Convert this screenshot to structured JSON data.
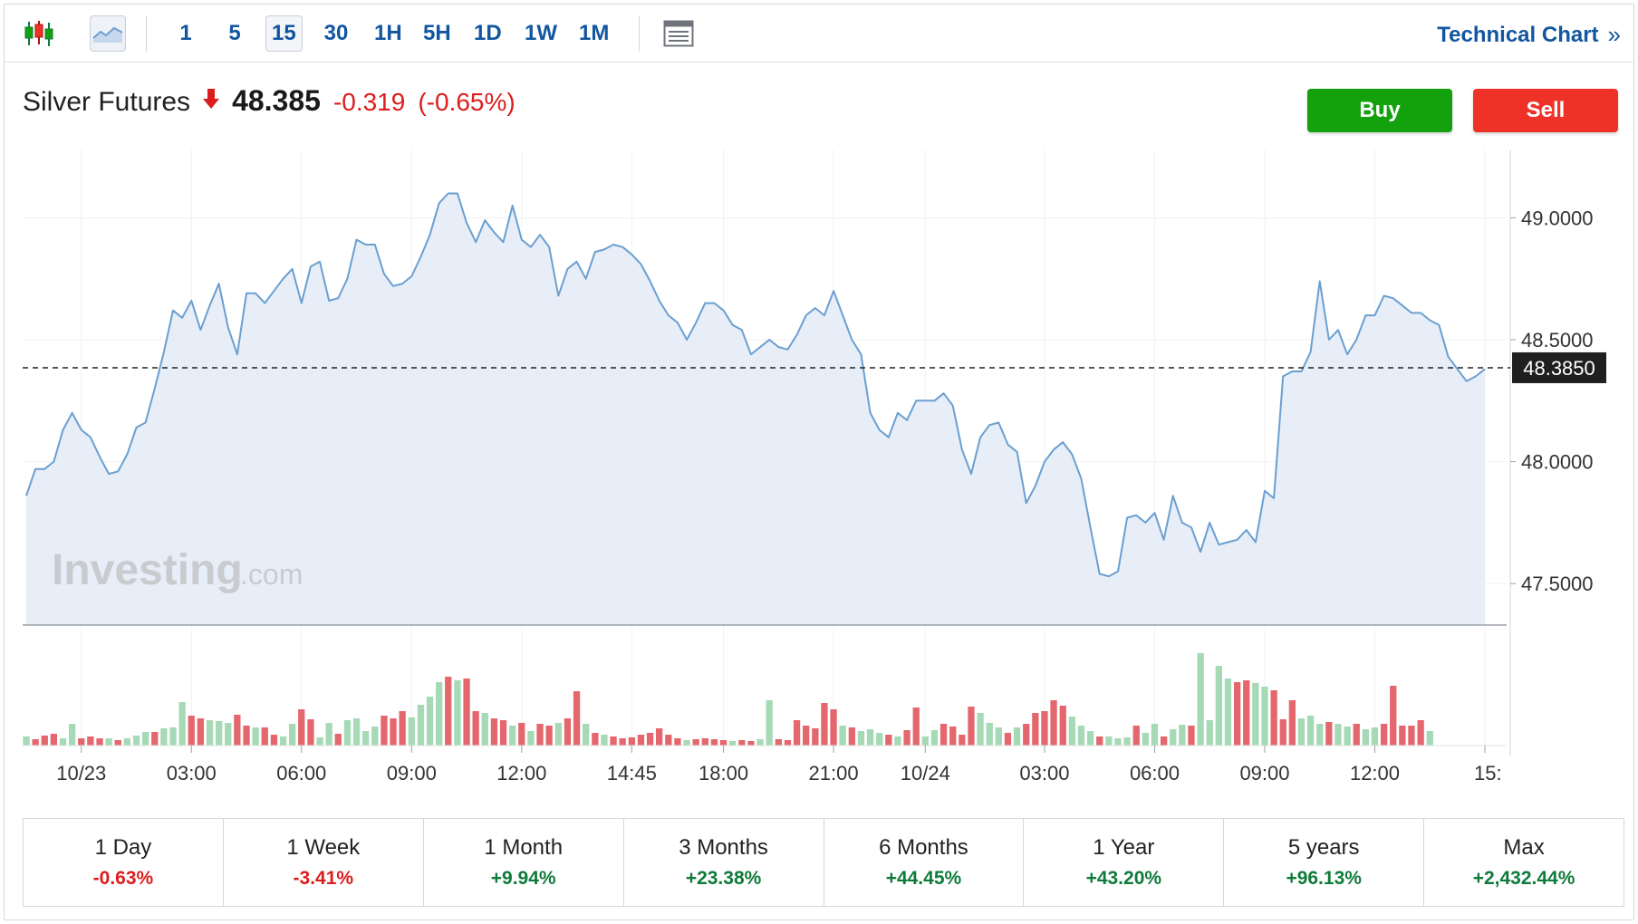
{
  "toolbar": {
    "intervals": [
      {
        "label": "1"
      },
      {
        "label": "5"
      },
      {
        "label": "15",
        "active": true
      },
      {
        "label": "30"
      },
      {
        "label": "1H"
      },
      {
        "label": "5H"
      },
      {
        "label": "1D"
      },
      {
        "label": "1W"
      },
      {
        "label": "1M"
      }
    ],
    "technical_chart_label": "Technical Chart"
  },
  "instrument": {
    "name": "Silver Futures",
    "price": "48.385",
    "change": "-0.319",
    "change_pct": "(-0.65%)",
    "direction": "down"
  },
  "actions": {
    "buy_label": "Buy",
    "sell_label": "Sell"
  },
  "watermark": {
    "brand": "Investing",
    "suffix": ".com"
  },
  "colors": {
    "line": "#6b9fd0",
    "area_fill": "#e7eef8",
    "volume_up": "#a6d9b6",
    "volume_down": "#e4676e",
    "negative": "#dc1d1d",
    "positive": "#0f7b3a",
    "buy": "#13a10e",
    "sell": "#ee3228",
    "current_price_tag": "#1f1f1f"
  },
  "chart_data": {
    "type": "area",
    "interval_minutes": 15,
    "ylim": [
      47.33,
      49.28
    ],
    "y_ticks": [
      49.0,
      48.5,
      48.0,
      47.5
    ],
    "y_tick_labels": [
      "49.0000",
      "48.5000",
      "48.0000",
      "47.5000"
    ],
    "current_price": 48.385,
    "current_price_label": "48.3850",
    "x_tick_labels": [
      "10/23",
      "03:00",
      "06:00",
      "09:00",
      "12:00",
      "14:45",
      "18:00",
      "21:00",
      "10/24",
      "03:00",
      "06:00",
      "09:00",
      "12:00",
      "15:"
    ],
    "x_tick_index": [
      6,
      18,
      30,
      42,
      54,
      66,
      76,
      88,
      98,
      111,
      123,
      135,
      147,
      159
    ],
    "grid": true,
    "series": [
      {
        "values": [
          47.86,
          47.97,
          47.97,
          48.0,
          48.13,
          48.2,
          48.13,
          48.1,
          48.02,
          47.95,
          47.96,
          48.03,
          48.14,
          48.16,
          48.3,
          48.45,
          48.62,
          48.59,
          48.66,
          48.54,
          48.64,
          48.73,
          48.55,
          48.44,
          48.69,
          48.69,
          48.65,
          48.7,
          48.75,
          48.79,
          48.65,
          48.8,
          48.82,
          48.66,
          48.67,
          48.75,
          48.91,
          48.89,
          48.89,
          48.77,
          48.72,
          48.73,
          48.76,
          48.84,
          48.93,
          49.06,
          49.1,
          49.1,
          48.98,
          48.9,
          48.99,
          48.94,
          48.9,
          49.05,
          48.91,
          48.88,
          48.93,
          48.88,
          48.68,
          48.79,
          48.82,
          48.75,
          48.86,
          48.87,
          48.89,
          48.88,
          48.85,
          48.81,
          48.74,
          48.66,
          48.6,
          48.57,
          48.5,
          48.57,
          48.65,
          48.65,
          48.62,
          48.56,
          48.54,
          48.44,
          48.47,
          48.5,
          48.47,
          48.46,
          48.52,
          48.6,
          48.63,
          48.6,
          48.7,
          48.6,
          48.5,
          48.44,
          48.2,
          48.13,
          48.1,
          48.2,
          48.17,
          48.25,
          48.25,
          48.25,
          48.28,
          48.23,
          48.05,
          47.95,
          48.1,
          48.15,
          48.16,
          48.07,
          48.04,
          47.83,
          47.9,
          48.0,
          48.05,
          48.08,
          48.03,
          47.93,
          47.73,
          47.54,
          47.53,
          47.55,
          47.77,
          47.78,
          47.75,
          47.79,
          47.68,
          47.86,
          47.75,
          47.73,
          47.63,
          47.75,
          47.66,
          47.67,
          47.68,
          47.72,
          47.67,
          47.88,
          47.85,
          48.35,
          48.37,
          48.37,
          48.45,
          48.74,
          48.5,
          48.54,
          48.44,
          48.5,
          48.6,
          48.6,
          48.68,
          48.67,
          48.64,
          48.61,
          48.61,
          48.58,
          48.56,
          48.43,
          48.38,
          48.33,
          48.35,
          48.38
        ]
      }
    ],
    "volume": [
      {
        "h": 10,
        "d": 0
      },
      {
        "h": 7,
        "d": 1
      },
      {
        "h": 11,
        "d": 1
      },
      {
        "h": 13,
        "d": 1
      },
      {
        "h": 8,
        "d": 0
      },
      {
        "h": 24,
        "d": 0
      },
      {
        "h": 8,
        "d": 1
      },
      {
        "h": 10,
        "d": 1
      },
      {
        "h": 8,
        "d": 1
      },
      {
        "h": 8,
        "d": 0
      },
      {
        "h": 6,
        "d": 1
      },
      {
        "h": 8,
        "d": 0
      },
      {
        "h": 11,
        "d": 0
      },
      {
        "h": 15,
        "d": 0
      },
      {
        "h": 15,
        "d": 1
      },
      {
        "h": 19,
        "d": 0
      },
      {
        "h": 20,
        "d": 0
      },
      {
        "h": 48,
        "d": 0
      },
      {
        "h": 33,
        "d": 1
      },
      {
        "h": 30,
        "d": 1
      },
      {
        "h": 28,
        "d": 0
      },
      {
        "h": 27,
        "d": 0
      },
      {
        "h": 25,
        "d": 0
      },
      {
        "h": 34,
        "d": 1
      },
      {
        "h": 22,
        "d": 1
      },
      {
        "h": 20,
        "d": 0
      },
      {
        "h": 20,
        "d": 1
      },
      {
        "h": 12,
        "d": 1
      },
      {
        "h": 10,
        "d": 0
      },
      {
        "h": 24,
        "d": 0
      },
      {
        "h": 40,
        "d": 1
      },
      {
        "h": 29,
        "d": 1
      },
      {
        "h": 9,
        "d": 0
      },
      {
        "h": 25,
        "d": 0
      },
      {
        "h": 13,
        "d": 1
      },
      {
        "h": 28,
        "d": 0
      },
      {
        "h": 30,
        "d": 0
      },
      {
        "h": 16,
        "d": 0
      },
      {
        "h": 21,
        "d": 0
      },
      {
        "h": 33,
        "d": 1
      },
      {
        "h": 30,
        "d": 1
      },
      {
        "h": 38,
        "d": 1
      },
      {
        "h": 31,
        "d": 0
      },
      {
        "h": 45,
        "d": 0
      },
      {
        "h": 54,
        "d": 0
      },
      {
        "h": 70,
        "d": 0
      },
      {
        "h": 76,
        "d": 1
      },
      {
        "h": 72,
        "d": 0
      },
      {
        "h": 74,
        "d": 1
      },
      {
        "h": 38,
        "d": 1
      },
      {
        "h": 36,
        "d": 0
      },
      {
        "h": 30,
        "d": 1
      },
      {
        "h": 28,
        "d": 1
      },
      {
        "h": 22,
        "d": 0
      },
      {
        "h": 25,
        "d": 1
      },
      {
        "h": 16,
        "d": 0
      },
      {
        "h": 24,
        "d": 1
      },
      {
        "h": 22,
        "d": 1
      },
      {
        "h": 25,
        "d": 0
      },
      {
        "h": 30,
        "d": 1
      },
      {
        "h": 60,
        "d": 1
      },
      {
        "h": 24,
        "d": 0
      },
      {
        "h": 14,
        "d": 1
      },
      {
        "h": 12,
        "d": 0
      },
      {
        "h": 10,
        "d": 1
      },
      {
        "h": 8,
        "d": 1
      },
      {
        "h": 9,
        "d": 1
      },
      {
        "h": 12,
        "d": 1
      },
      {
        "h": 14,
        "d": 1
      },
      {
        "h": 19,
        "d": 1
      },
      {
        "h": 12,
        "d": 1
      },
      {
        "h": 8,
        "d": 1
      },
      {
        "h": 6,
        "d": 0
      },
      {
        "h": 7,
        "d": 1
      },
      {
        "h": 8,
        "d": 1
      },
      {
        "h": 7,
        "d": 1
      },
      {
        "h": 6,
        "d": 1
      },
      {
        "h": 5,
        "d": 0
      },
      {
        "h": 6,
        "d": 1
      },
      {
        "h": 5,
        "d": 1
      },
      {
        "h": 7,
        "d": 0
      },
      {
        "h": 50,
        "d": 0
      },
      {
        "h": 7,
        "d": 1
      },
      {
        "h": 6,
        "d": 1
      },
      {
        "h": 28,
        "d": 1
      },
      {
        "h": 22,
        "d": 1
      },
      {
        "h": 19,
        "d": 1
      },
      {
        "h": 47,
        "d": 1
      },
      {
        "h": 40,
        "d": 1
      },
      {
        "h": 22,
        "d": 0
      },
      {
        "h": 20,
        "d": 1
      },
      {
        "h": 16,
        "d": 0
      },
      {
        "h": 18,
        "d": 0
      },
      {
        "h": 14,
        "d": 0
      },
      {
        "h": 12,
        "d": 1
      },
      {
        "h": 10,
        "d": 0
      },
      {
        "h": 17,
        "d": 1
      },
      {
        "h": 42,
        "d": 1
      },
      {
        "h": 10,
        "d": 0
      },
      {
        "h": 17,
        "d": 0
      },
      {
        "h": 24,
        "d": 1
      },
      {
        "h": 21,
        "d": 1
      },
      {
        "h": 12,
        "d": 1
      },
      {
        "h": 43,
        "d": 1
      },
      {
        "h": 36,
        "d": 0
      },
      {
        "h": 25,
        "d": 0
      },
      {
        "h": 20,
        "d": 0
      },
      {
        "h": 14,
        "d": 1
      },
      {
        "h": 20,
        "d": 0
      },
      {
        "h": 24,
        "d": 1
      },
      {
        "h": 36,
        "d": 1
      },
      {
        "h": 38,
        "d": 1
      },
      {
        "h": 50,
        "d": 1
      },
      {
        "h": 44,
        "d": 1
      },
      {
        "h": 32,
        "d": 0
      },
      {
        "h": 22,
        "d": 0
      },
      {
        "h": 16,
        "d": 0
      },
      {
        "h": 10,
        "d": 1
      },
      {
        "h": 10,
        "d": 0
      },
      {
        "h": 8,
        "d": 0
      },
      {
        "h": 9,
        "d": 0
      },
      {
        "h": 22,
        "d": 1
      },
      {
        "h": 14,
        "d": 0
      },
      {
        "h": 24,
        "d": 0
      },
      {
        "h": 10,
        "d": 1
      },
      {
        "h": 18,
        "d": 0
      },
      {
        "h": 23,
        "d": 0
      },
      {
        "h": 22,
        "d": 1
      },
      {
        "h": 102,
        "d": 0
      },
      {
        "h": 28,
        "d": 0
      },
      {
        "h": 88,
        "d": 0
      },
      {
        "h": 74,
        "d": 0
      },
      {
        "h": 70,
        "d": 1
      },
      {
        "h": 72,
        "d": 1
      },
      {
        "h": 69,
        "d": 0
      },
      {
        "h": 65,
        "d": 0
      },
      {
        "h": 61,
        "d": 1
      },
      {
        "h": 29,
        "d": 1
      },
      {
        "h": 50,
        "d": 1
      },
      {
        "h": 30,
        "d": 0
      },
      {
        "h": 33,
        "d": 0
      },
      {
        "h": 24,
        "d": 0
      },
      {
        "h": 26,
        "d": 1
      },
      {
        "h": 24,
        "d": 0
      },
      {
        "h": 21,
        "d": 0
      },
      {
        "h": 24,
        "d": 1
      },
      {
        "h": 18,
        "d": 0
      },
      {
        "h": 20,
        "d": 0
      },
      {
        "h": 24,
        "d": 1
      },
      {
        "h": 66,
        "d": 1
      },
      {
        "h": 22,
        "d": 1
      },
      {
        "h": 22,
        "d": 1
      },
      {
        "h": 28,
        "d": 1
      },
      {
        "h": 16,
        "d": 0
      }
    ]
  },
  "periods": [
    {
      "label": "1 Day",
      "value": "-0.63%",
      "dir": "neg"
    },
    {
      "label": "1 Week",
      "value": "-3.41%",
      "dir": "neg"
    },
    {
      "label": "1 Month",
      "value": "+9.94%",
      "dir": "pos"
    },
    {
      "label": "3 Months",
      "value": "+23.38%",
      "dir": "pos"
    },
    {
      "label": "6 Months",
      "value": "+44.45%",
      "dir": "pos"
    },
    {
      "label": "1 Year",
      "value": "+43.20%",
      "dir": "pos"
    },
    {
      "label": "5 years",
      "value": "+96.13%",
      "dir": "pos"
    },
    {
      "label": "Max",
      "value": "+2,432.44%",
      "dir": "pos"
    }
  ]
}
